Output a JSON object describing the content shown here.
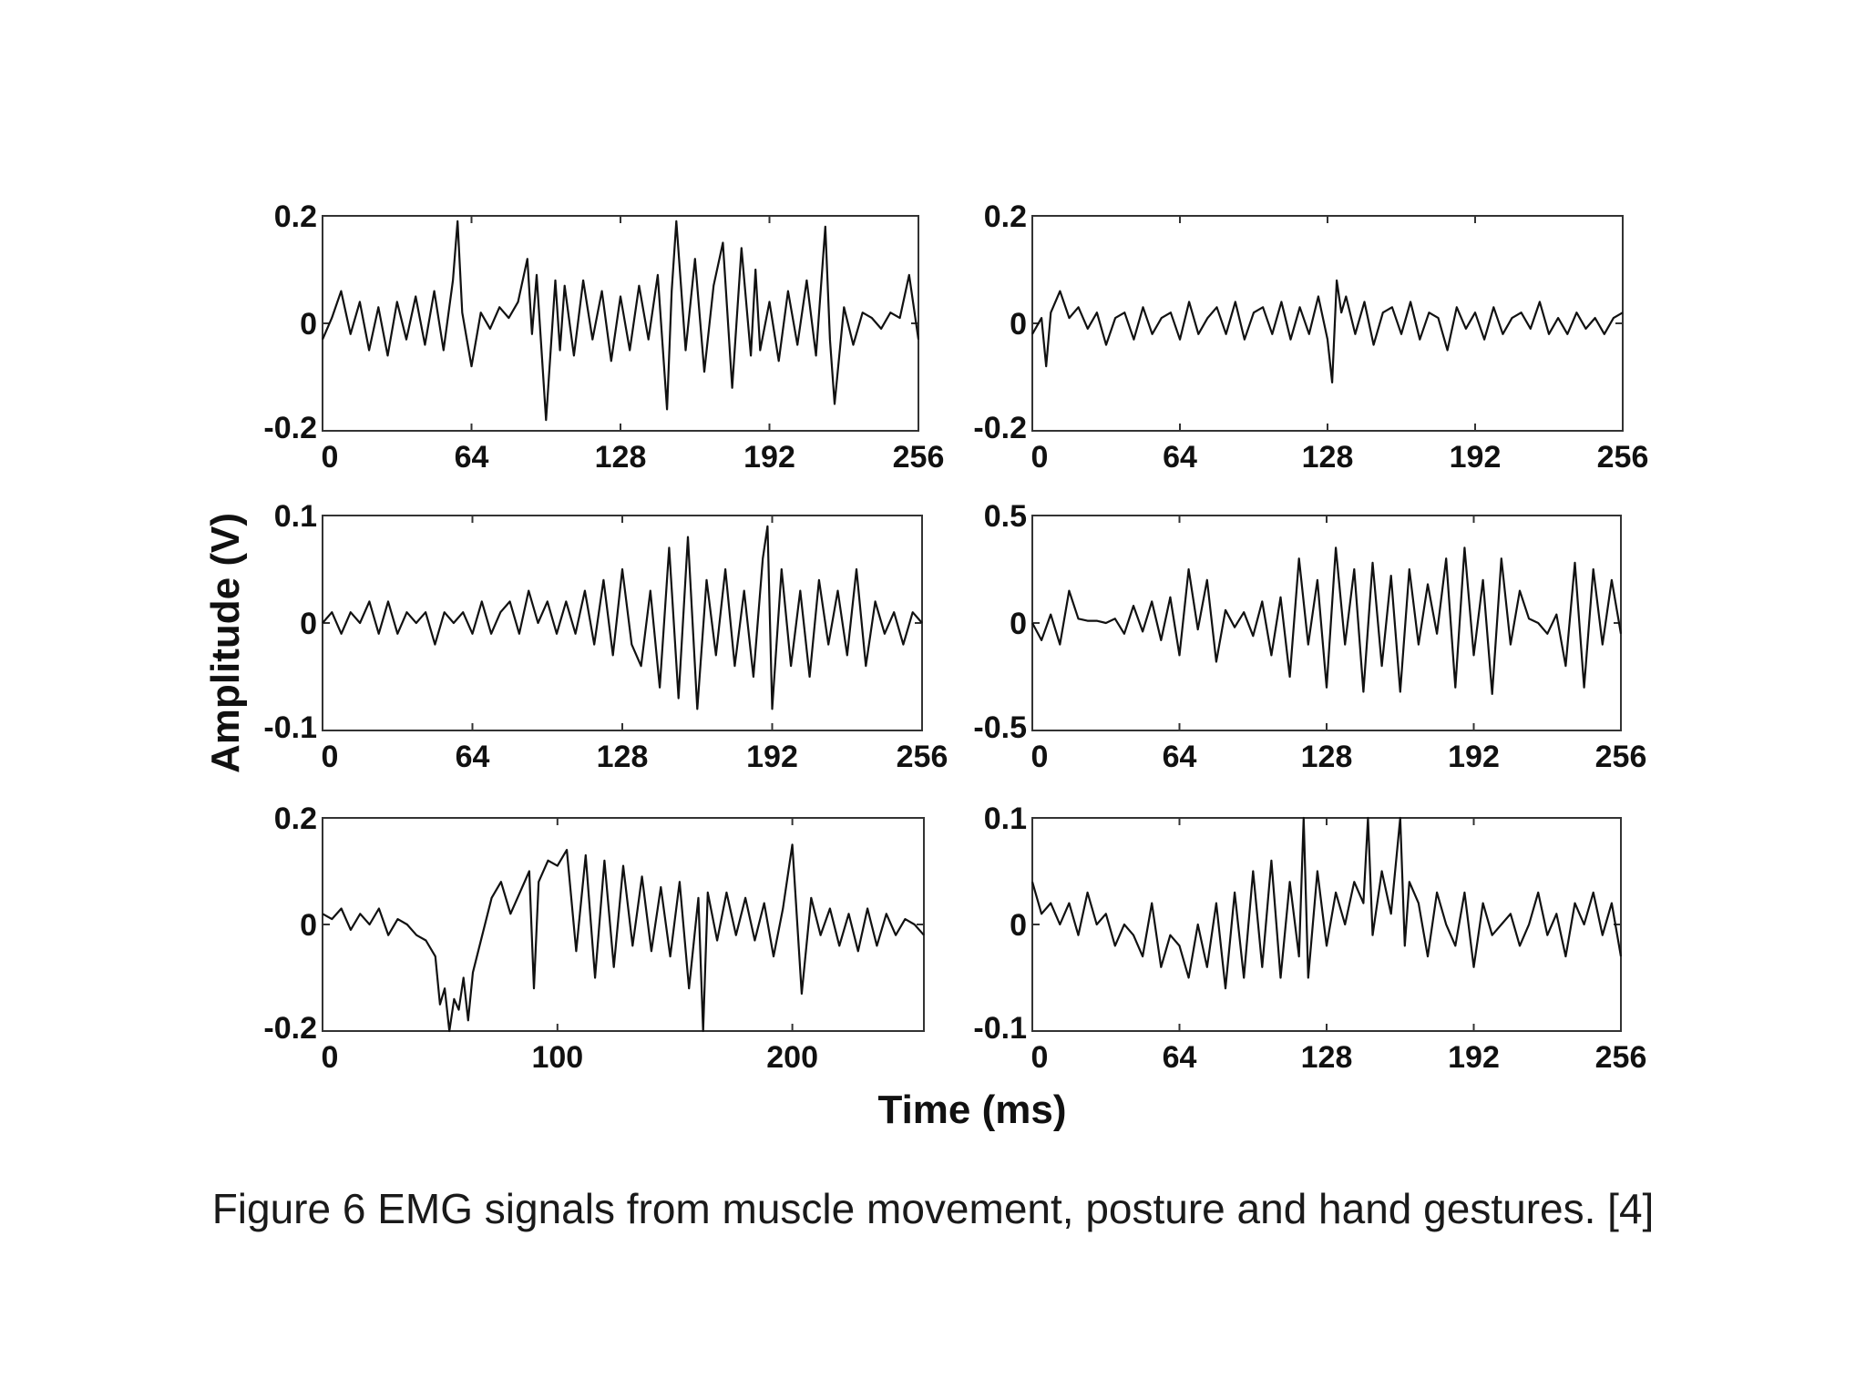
{
  "caption": "Figure 6  EMG signals from muscle movement, posture and hand gestures. [4]",
  "shared_ylabel": "Amplitude (V)",
  "shared_xlabel": "Time (ms)",
  "chart_data": [
    {
      "type": "line",
      "position": "top-left",
      "xlim": [
        0,
        256
      ],
      "ylim": [
        -0.2,
        0.2
      ],
      "xticks": [
        0,
        64,
        128,
        192,
        256
      ],
      "yticks": [
        0.2,
        0,
        -0.2
      ],
      "xtick_labels": [
        "0",
        "64",
        "128",
        "192",
        "256"
      ],
      "ytick_labels": [
        "0.2",
        "0",
        "-0.2"
      ],
      "x": [
        0,
        4,
        8,
        12,
        16,
        20,
        24,
        28,
        32,
        36,
        40,
        44,
        48,
        52,
        56,
        58,
        60,
        64,
        68,
        72,
        76,
        80,
        84,
        88,
        90,
        92,
        96,
        100,
        102,
        104,
        108,
        112,
        116,
        120,
        124,
        128,
        132,
        136,
        140,
        144,
        148,
        150,
        152,
        156,
        160,
        164,
        168,
        172,
        176,
        180,
        184,
        186,
        188,
        192,
        196,
        200,
        204,
        208,
        212,
        216,
        218,
        220,
        224,
        228,
        232,
        236,
        240,
        244,
        248,
        252,
        256
      ],
      "y": [
        -0.03,
        0.01,
        0.06,
        -0.02,
        0.04,
        -0.05,
        0.03,
        -0.06,
        0.04,
        -0.03,
        0.05,
        -0.04,
        0.06,
        -0.05,
        0.08,
        0.19,
        0.02,
        -0.08,
        0.02,
        -0.01,
        0.03,
        0.01,
        0.04,
        0.12,
        -0.02,
        0.09,
        -0.18,
        0.08,
        -0.05,
        0.07,
        -0.06,
        0.08,
        -0.03,
        0.06,
        -0.07,
        0.05,
        -0.05,
        0.07,
        -0.03,
        0.09,
        -0.16,
        0.06,
        0.19,
        -0.05,
        0.12,
        -0.09,
        0.07,
        0.15,
        -0.12,
        0.14,
        -0.06,
        0.1,
        -0.05,
        0.04,
        -0.07,
        0.06,
        -0.04,
        0.08,
        -0.06,
        0.18,
        -0.03,
        -0.15,
        0.03,
        -0.04,
        0.02,
        0.01,
        -0.01,
        0.02,
        0.01,
        0.09,
        -0.03
      ]
    },
    {
      "type": "line",
      "position": "top-right",
      "xlim": [
        0,
        256
      ],
      "ylim": [
        -0.2,
        0.2
      ],
      "xticks": [
        0,
        64,
        128,
        192,
        256
      ],
      "yticks": [
        0.2,
        0,
        -0.2
      ],
      "xtick_labels": [
        "0",
        "64",
        "128",
        "192",
        "256"
      ],
      "ytick_labels": [
        "0.2",
        "0",
        "-0.2"
      ],
      "x": [
        0,
        4,
        6,
        8,
        12,
        16,
        20,
        24,
        28,
        32,
        36,
        40,
        44,
        48,
        52,
        56,
        60,
        64,
        68,
        72,
        76,
        80,
        84,
        88,
        92,
        96,
        100,
        104,
        108,
        112,
        116,
        120,
        124,
        128,
        130,
        132,
        134,
        136,
        140,
        144,
        148,
        152,
        156,
        160,
        164,
        168,
        172,
        176,
        180,
        184,
        188,
        192,
        196,
        200,
        204,
        208,
        212,
        216,
        220,
        224,
        228,
        232,
        236,
        240,
        244,
        248,
        252,
        256
      ],
      "y": [
        -0.02,
        0.01,
        -0.08,
        0.02,
        0.06,
        0.01,
        0.03,
        -0.01,
        0.02,
        -0.04,
        0.01,
        0.02,
        -0.03,
        0.03,
        -0.02,
        0.01,
        0.02,
        -0.03,
        0.04,
        -0.02,
        0.01,
        0.03,
        -0.02,
        0.04,
        -0.03,
        0.02,
        0.03,
        -0.02,
        0.04,
        -0.03,
        0.03,
        -0.02,
        0.05,
        -0.03,
        -0.11,
        0.08,
        0.02,
        0.05,
        -0.02,
        0.04,
        -0.04,
        0.02,
        0.03,
        -0.02,
        0.04,
        -0.03,
        0.02,
        0.01,
        -0.05,
        0.03,
        -0.01,
        0.02,
        -0.03,
        0.03,
        -0.02,
        0.01,
        0.02,
        -0.01,
        0.04,
        -0.02,
        0.01,
        -0.02,
        0.02,
        -0.01,
        0.01,
        -0.02,
        0.01,
        0.02
      ]
    },
    {
      "type": "line",
      "position": "middle-left",
      "xlim": [
        0,
        256
      ],
      "ylim": [
        -0.1,
        0.1
      ],
      "xticks": [
        0,
        64,
        128,
        192,
        256
      ],
      "yticks": [
        0.1,
        0,
        -0.1
      ],
      "xtick_labels": [
        "0",
        "64",
        "128",
        "192",
        "256"
      ],
      "ytick_labels": [
        "0.1",
        "0",
        "-0.1"
      ],
      "x": [
        0,
        4,
        8,
        12,
        16,
        20,
        24,
        28,
        32,
        36,
        40,
        44,
        48,
        52,
        56,
        60,
        64,
        68,
        72,
        76,
        80,
        84,
        88,
        92,
        96,
        100,
        104,
        108,
        112,
        116,
        120,
        124,
        128,
        132,
        136,
        140,
        144,
        148,
        152,
        156,
        160,
        164,
        168,
        172,
        176,
        180,
        184,
        188,
        190,
        192,
        196,
        200,
        204,
        208,
        212,
        216,
        220,
        224,
        228,
        232,
        236,
        240,
        244,
        248,
        252,
        256
      ],
      "y": [
        0.0,
        0.01,
        -0.01,
        0.01,
        0.0,
        0.02,
        -0.01,
        0.02,
        -0.01,
        0.01,
        0.0,
        0.01,
        -0.02,
        0.01,
        0.0,
        0.01,
        -0.01,
        0.02,
        -0.01,
        0.01,
        0.02,
        -0.01,
        0.03,
        0.0,
        0.02,
        -0.01,
        0.02,
        -0.01,
        0.03,
        -0.02,
        0.04,
        -0.03,
        0.05,
        -0.02,
        -0.04,
        0.03,
        -0.06,
        0.07,
        -0.07,
        0.08,
        -0.08,
        0.04,
        -0.03,
        0.05,
        -0.04,
        0.03,
        -0.05,
        0.06,
        0.09,
        -0.08,
        0.05,
        -0.04,
        0.03,
        -0.05,
        0.04,
        -0.02,
        0.03,
        -0.03,
        0.05,
        -0.04,
        0.02,
        -0.01,
        0.01,
        -0.02,
        0.01,
        0.0
      ]
    },
    {
      "type": "line",
      "position": "middle-right",
      "xlim": [
        0,
        256
      ],
      "ylim": [
        -0.5,
        0.5
      ],
      "xticks": [
        0,
        64,
        128,
        192,
        256
      ],
      "yticks": [
        0.5,
        0,
        -0.5
      ],
      "xtick_labels": [
        "0",
        "64",
        "128",
        "192",
        "256"
      ],
      "ytick_labels": [
        "0.5",
        "0",
        "-0.5"
      ],
      "x": [
        0,
        4,
        8,
        12,
        16,
        20,
        24,
        28,
        32,
        36,
        40,
        44,
        48,
        52,
        56,
        60,
        64,
        68,
        72,
        76,
        80,
        84,
        88,
        92,
        96,
        100,
        104,
        108,
        112,
        116,
        120,
        124,
        128,
        132,
        136,
        140,
        144,
        148,
        152,
        156,
        160,
        164,
        168,
        172,
        176,
        180,
        184,
        188,
        192,
        196,
        200,
        204,
        208,
        212,
        216,
        220,
        224,
        228,
        232,
        236,
        240,
        244,
        248,
        252,
        256
      ],
      "y": [
        0.0,
        -0.08,
        0.04,
        -0.1,
        0.15,
        0.02,
        0.01,
        0.01,
        0.0,
        0.02,
        -0.05,
        0.08,
        -0.04,
        0.1,
        -0.08,
        0.12,
        -0.15,
        0.25,
        -0.03,
        0.2,
        -0.18,
        0.06,
        -0.02,
        0.05,
        -0.06,
        0.1,
        -0.15,
        0.12,
        -0.25,
        0.3,
        -0.1,
        0.2,
        -0.3,
        0.35,
        -0.1,
        0.25,
        -0.32,
        0.28,
        -0.2,
        0.22,
        -0.32,
        0.25,
        -0.1,
        0.18,
        -0.05,
        0.3,
        -0.3,
        0.35,
        -0.15,
        0.2,
        -0.33,
        0.3,
        -0.1,
        0.15,
        0.02,
        0.0,
        -0.05,
        0.04,
        -0.2,
        0.28,
        -0.3,
        0.25,
        -0.1,
        0.2,
        -0.05
      ]
    },
    {
      "type": "line",
      "position": "bottom-left",
      "xlim": [
        0,
        256
      ],
      "ylim": [
        -0.2,
        0.2
      ],
      "xticks": [
        0,
        100,
        200
      ],
      "yticks": [
        0.2,
        0,
        -0.2
      ],
      "xtick_labels": [
        "0",
        "100",
        "200"
      ],
      "ytick_labels": [
        "0.2",
        "0",
        "-0.2"
      ],
      "x": [
        0,
        4,
        8,
        12,
        16,
        20,
        24,
        28,
        32,
        36,
        40,
        44,
        48,
        50,
        52,
        54,
        56,
        58,
        60,
        62,
        64,
        68,
        72,
        76,
        80,
        84,
        88,
        90,
        92,
        96,
        100,
        104,
        108,
        112,
        116,
        120,
        124,
        128,
        132,
        136,
        140,
        144,
        148,
        152,
        156,
        160,
        162,
        164,
        168,
        172,
        176,
        180,
        184,
        188,
        192,
        196,
        200,
        204,
        208,
        212,
        216,
        220,
        224,
        228,
        232,
        236,
        240,
        244,
        248,
        252,
        256
      ],
      "y": [
        0.02,
        0.01,
        0.03,
        -0.01,
        0.02,
        0.0,
        0.03,
        -0.02,
        0.01,
        0.0,
        -0.02,
        -0.03,
        -0.06,
        -0.15,
        -0.12,
        -0.2,
        -0.14,
        -0.16,
        -0.1,
        -0.18,
        -0.09,
        -0.02,
        0.05,
        0.08,
        0.02,
        0.06,
        0.1,
        -0.12,
        0.08,
        0.12,
        0.11,
        0.14,
        -0.05,
        0.13,
        -0.1,
        0.12,
        -0.08,
        0.11,
        -0.04,
        0.09,
        -0.05,
        0.07,
        -0.06,
        0.08,
        -0.12,
        0.05,
        -0.2,
        0.06,
        -0.03,
        0.06,
        -0.02,
        0.05,
        -0.03,
        0.04,
        -0.06,
        0.03,
        0.15,
        -0.13,
        0.05,
        -0.02,
        0.03,
        -0.04,
        0.02,
        -0.05,
        0.03,
        -0.04,
        0.02,
        -0.02,
        0.01,
        0.0,
        -0.02
      ]
    },
    {
      "type": "line",
      "position": "bottom-right",
      "xlim": [
        0,
        256
      ],
      "ylim": [
        -0.1,
        0.1
      ],
      "xticks": [
        0,
        64,
        128,
        192,
        256
      ],
      "yticks": [
        0.1,
        0,
        -0.1
      ],
      "xtick_labels": [
        "0",
        "64",
        "128",
        "192",
        "256"
      ],
      "ytick_labels": [
        "0.1",
        "0",
        "-0.1"
      ],
      "x": [
        0,
        4,
        8,
        12,
        16,
        20,
        24,
        28,
        32,
        36,
        40,
        44,
        48,
        52,
        56,
        60,
        64,
        68,
        72,
        76,
        80,
        84,
        88,
        92,
        96,
        100,
        104,
        108,
        112,
        116,
        118,
        120,
        124,
        128,
        132,
        136,
        140,
        144,
        146,
        148,
        152,
        156,
        160,
        162,
        164,
        168,
        172,
        176,
        180,
        184,
        188,
        192,
        196,
        200,
        204,
        208,
        212,
        216,
        220,
        224,
        228,
        232,
        236,
        240,
        244,
        248,
        252,
        256
      ],
      "y": [
        0.04,
        0.01,
        0.02,
        0.0,
        0.02,
        -0.01,
        0.03,
        0.0,
        0.01,
        -0.02,
        0.0,
        -0.01,
        -0.03,
        0.02,
        -0.04,
        -0.01,
        -0.02,
        -0.05,
        0.0,
        -0.04,
        0.02,
        -0.06,
        0.03,
        -0.05,
        0.05,
        -0.04,
        0.06,
        -0.05,
        0.04,
        -0.03,
        0.1,
        -0.05,
        0.05,
        -0.02,
        0.03,
        0.0,
        0.04,
        0.02,
        0.1,
        -0.01,
        0.05,
        0.01,
        0.1,
        -0.02,
        0.04,
        0.02,
        -0.03,
        0.03,
        0.0,
        -0.02,
        0.03,
        -0.04,
        0.02,
        -0.01,
        0.0,
        0.01,
        -0.02,
        0.0,
        0.03,
        -0.01,
        0.01,
        -0.03,
        0.02,
        0.0,
        0.03,
        -0.01,
        0.02,
        -0.03
      ]
    }
  ]
}
